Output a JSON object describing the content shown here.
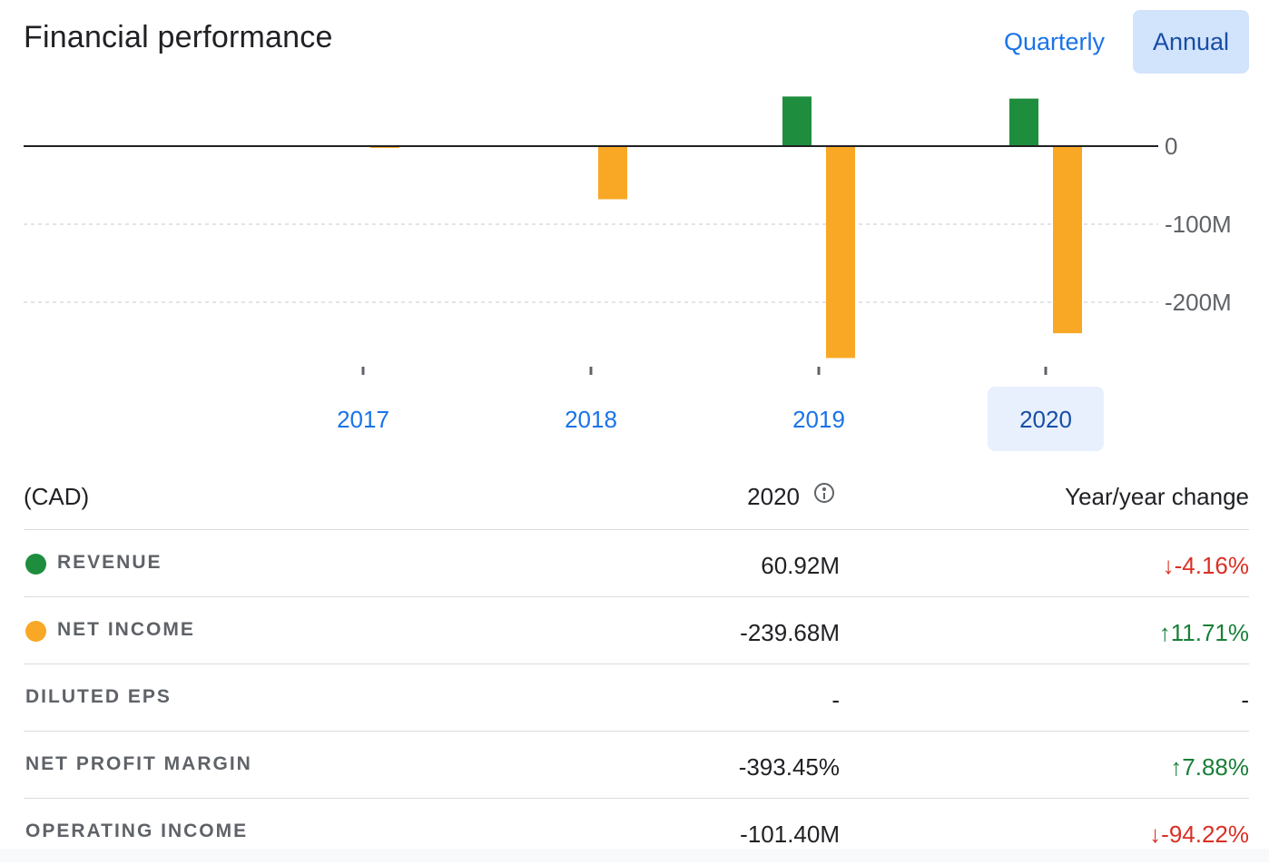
{
  "header": {
    "title": "Financial performance",
    "toggle_quarterly": "Quarterly",
    "toggle_annual": "Annual"
  },
  "chart_data": {
    "type": "bar",
    "categories": [
      "2017",
      "2018",
      "2019",
      "2020"
    ],
    "selected_category": "2020",
    "series": [
      {
        "name": "Revenue",
        "color": "#1e8e3e",
        "values": [
          0,
          0,
          63.56,
          60.92
        ]
      },
      {
        "name": "Net income",
        "color": "#f9a825",
        "values": [
          -1.0,
          -68.0,
          -271.4,
          -239.68
        ]
      }
    ],
    "y_ticks": [
      "0",
      "-100M",
      "-200M"
    ],
    "ylim": [
      -280,
      70
    ],
    "grid": true,
    "title": "",
    "xlabel": "",
    "ylabel": ""
  },
  "table": {
    "currency": "(CAD)",
    "period": "2020",
    "change_header": "Year/year change",
    "rows": [
      {
        "label": "REVENUE",
        "dot_color": "#1e8e3e",
        "value": "60.92M",
        "change": "↓-4.16%",
        "direction": "down"
      },
      {
        "label": "NET INCOME",
        "dot_color": "#f9a825",
        "value": "-239.68M",
        "change": "↑11.71%",
        "direction": "up"
      },
      {
        "label": "DILUTED EPS",
        "dot_color": "",
        "value": "-",
        "change": "-",
        "direction": "none"
      },
      {
        "label": "NET PROFIT MARGIN",
        "dot_color": "",
        "value": "-393.45%",
        "change": "↑7.88%",
        "direction": "up"
      },
      {
        "label": "OPERATING INCOME",
        "dot_color": "",
        "value": "-101.40M",
        "change": "↓-94.22%",
        "direction": "down"
      }
    ]
  }
}
